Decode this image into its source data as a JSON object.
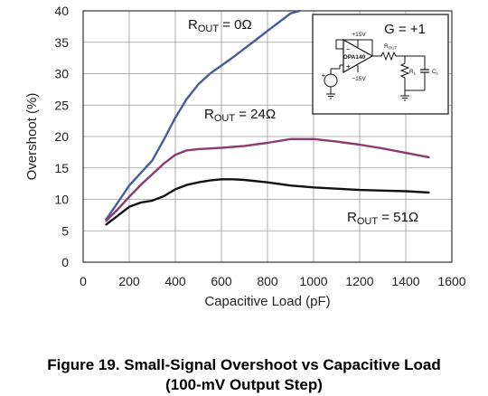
{
  "chart_data": {
    "type": "line",
    "title": "",
    "xlabel": "Capacitive Load (pF)",
    "ylabel": "Overshoot (%)",
    "xlim": [
      0,
      1600
    ],
    "ylim": [
      0,
      40
    ],
    "xticks": [
      0,
      200,
      400,
      600,
      800,
      1000,
      1200,
      1400,
      1600
    ],
    "yticks": [
      0,
      5,
      10,
      15,
      20,
      25,
      30,
      35,
      40
    ],
    "grid": true,
    "series": [
      {
        "name": "ROUT = 0Ω",
        "label_main": "R",
        "label_sub": "OUT",
        "label_value": " = 0Ω",
        "color": "#4a5a9c",
        "x": [
          100,
          150,
          200,
          250,
          300,
          350,
          400,
          450,
          500,
          550,
          600,
          650,
          700,
          750,
          800,
          850,
          900,
          940
        ],
        "y": [
          6.8,
          9.5,
          12.2,
          14.2,
          16.2,
          19.5,
          23.0,
          26.0,
          28.3,
          30.0,
          31.3,
          32.6,
          34.0,
          35.4,
          36.8,
          38.2,
          39.6,
          40.0
        ]
      },
      {
        "name": "ROUT = 24Ω",
        "label_main": "R",
        "label_sub": "OUT",
        "label_value": " = 24Ω",
        "color": "#8b3b6e",
        "x": [
          100,
          150,
          200,
          250,
          300,
          350,
          400,
          450,
          500,
          600,
          700,
          800,
          900,
          1000,
          1100,
          1200,
          1300,
          1400,
          1500
        ],
        "y": [
          6.6,
          8.4,
          10.4,
          12.3,
          14.0,
          15.7,
          17.1,
          17.8,
          18.0,
          18.2,
          18.5,
          19.0,
          19.6,
          19.6,
          19.2,
          18.7,
          18.1,
          17.4,
          16.7
        ]
      },
      {
        "name": "ROUT = 51Ω",
        "label_main": "R",
        "label_sub": "OUT",
        "label_value": " = 51Ω",
        "color": "#111111",
        "x": [
          100,
          150,
          200,
          250,
          300,
          350,
          400,
          450,
          500,
          550,
          600,
          650,
          700,
          800,
          900,
          1000,
          1100,
          1200,
          1300,
          1400,
          1500
        ],
        "y": [
          6.0,
          7.4,
          8.8,
          9.5,
          9.8,
          10.5,
          11.6,
          12.3,
          12.7,
          13.0,
          13.2,
          13.2,
          13.1,
          12.7,
          12.2,
          11.9,
          11.7,
          11.5,
          11.4,
          11.3,
          11.1
        ]
      }
    ],
    "inset": {
      "gain_label": "G = +1",
      "part_label": "OPA140",
      "vpos_label": "+15V",
      "vneg_label": "−15V",
      "rout_label": "R",
      "rout_sub": "OUT",
      "rl_label": "R",
      "rl_sub": "L",
      "cl_label": "C",
      "cl_sub": "L",
      "minus_sign": "−",
      "plus_sign": "+"
    }
  },
  "caption": {
    "line1": "Figure 19. Small-Signal Overshoot vs Capacitive Load",
    "line2": "(100-mV Output Step)"
  }
}
